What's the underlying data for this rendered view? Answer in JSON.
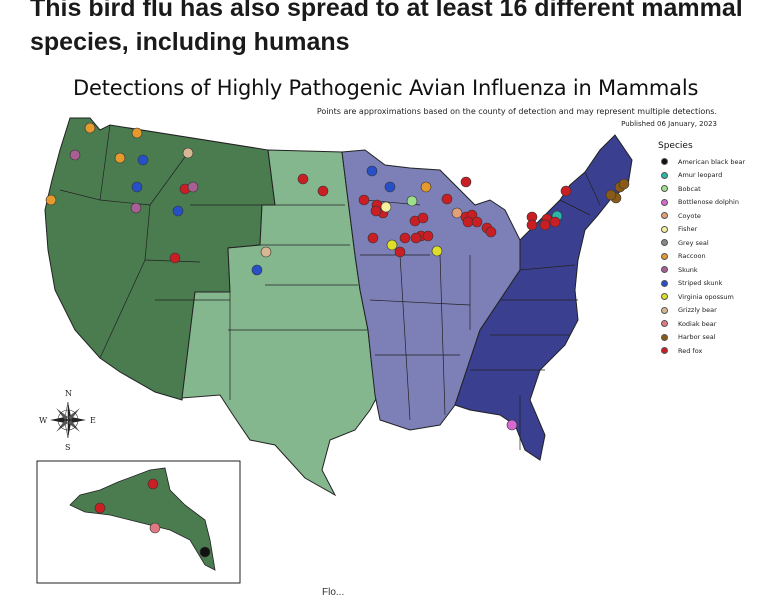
{
  "headline": "This bird flu has also spread to at least 16 different mammal species, including humans",
  "map": {
    "title": "Detections of Highly Pathogenic Avian Influenza in Mammals",
    "subtitle": "Points are approximations based on the county of detection and may represent multiple detections.",
    "published": "Published 06 January, 2023",
    "region_colors": {
      "west": "#4a7c50",
      "plains": "#85b78e",
      "midwest": "#7d7fb7",
      "east": "#3a3f8f",
      "border": "#2a2a2a"
    },
    "compass": {
      "n": "N",
      "s": "S",
      "e": "E",
      "w": "W"
    }
  },
  "legend": {
    "title": "Species",
    "items": [
      {
        "label": "American black bear",
        "color": "#111111"
      },
      {
        "label": "Amur leopard",
        "color": "#2bb7a8"
      },
      {
        "label": "Bobcat",
        "color": "#9de08a"
      },
      {
        "label": "Bottlenose dolphin",
        "color": "#d66ad2"
      },
      {
        "label": "Coyote",
        "color": "#e2a07a"
      },
      {
        "label": "Fisher",
        "color": "#f4f0a0"
      },
      {
        "label": "Grey seal",
        "color": "#888888"
      },
      {
        "label": "Raccoon",
        "color": "#e59a2e"
      },
      {
        "label": "Skunk",
        "color": "#a86094"
      },
      {
        "label": "Striped skunk",
        "color": "#2750c8"
      },
      {
        "label": "Virginia opossum",
        "color": "#dede2a"
      },
      {
        "label": "Grizzly bear",
        "color": "#d8b894"
      },
      {
        "label": "Kodiak bear",
        "color": "#e07a82"
      },
      {
        "label": "Harbor seal",
        "color": "#8a5a18"
      },
      {
        "label": "Red fox",
        "color": "#c81e24"
      }
    ]
  },
  "caption": "Flo..."
}
